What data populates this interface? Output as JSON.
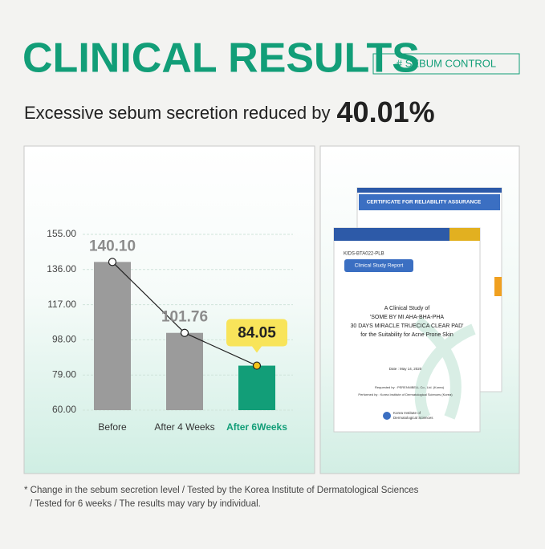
{
  "header": {
    "title": "CLINICAL RESULTS",
    "tag": "# SEBUM CONTROL",
    "subtitle": "Excessive sebum secretion reduced by",
    "highlight": "40.01%"
  },
  "chart_data": {
    "type": "bar",
    "categories": [
      "Before",
      "After 4 Weeks",
      "After 6Weeks"
    ],
    "values": [
      140.1,
      101.76,
      84.05
    ],
    "value_labels": [
      "140.10",
      "101.76",
      "84.05"
    ],
    "bar_colors": [
      "#9b9b9b",
      "#9b9b9b",
      "#129e78"
    ],
    "label_colors": [
      "#333333",
      "#333333",
      "#129e78"
    ],
    "value_label_colors": [
      "#8c8c8c",
      "#8c8c8c",
      "#222222"
    ],
    "value_label_backgrounds": [
      null,
      null,
      "#f8e45a"
    ],
    "dot_colors": [
      "#ffffff",
      "#ffffff",
      "#f5c518"
    ],
    "line": true,
    "line_color": "#222222",
    "ylim": [
      60,
      155
    ],
    "yticks": [
      {
        "value": 60,
        "label": "60.00"
      },
      {
        "value": 79,
        "label": "79.00"
      },
      {
        "value": 98,
        "label": "98.00"
      },
      {
        "value": 117,
        "label": "117.00"
      },
      {
        "value": 136,
        "label": "136.00"
      },
      {
        "value": 155,
        "label": "155.00"
      }
    ],
    "grid": true
  },
  "documents": {
    "certificate": "CERTIFICATE FOR RELIABILITY ASSURANCE",
    "code": "KIDS-BTA022-PLB",
    "report": "Clinical Study Report",
    "lines": [
      "A Clinical Study of",
      "'SOME BY MI AHA-BHA-PHA",
      "30 DAYS MIRACLE TRUECICA CLEAR PAD'",
      "for the Suitability for Acne Prone Skin"
    ],
    "date": "Date : May 14, 2020",
    "requested": "Requested by : PERENNIBELL Co., Ltd. (Korea)",
    "performed": "Performed by : Korea Institute of Dermatological Sciences (Korea)",
    "logo": [
      "Korea Institute of",
      "Dermatological Sciences"
    ]
  },
  "footnote": [
    "* Change in the sebum secretion level / Tested by the Korea Institute of Dermatological Sciences",
    "/ Tested for 6 weeks / The results may vary by individual."
  ]
}
